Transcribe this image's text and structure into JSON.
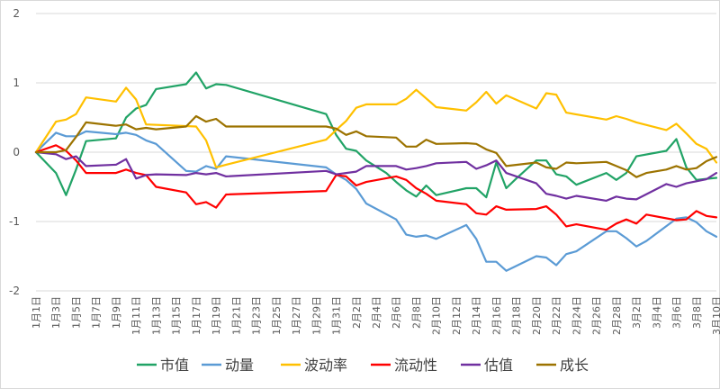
{
  "chart_data": {
    "type": "line",
    "title": "",
    "xlabel": "",
    "ylabel": "",
    "ylim": [
      -2,
      2
    ],
    "yticks": [
      2,
      1,
      0,
      -1,
      -2
    ],
    "grid": "horizontal",
    "legend": "bottom",
    "x_tick_labels": [
      "1月1日",
      "1月3日",
      "1月5日",
      "1月7日",
      "1月9日",
      "1月11日",
      "1月13日",
      "1月15日",
      "1月17日",
      "1月19日",
      "1月21日",
      "1月23日",
      "1月25日",
      "1月27日",
      "1月29日",
      "1月31日",
      "2月2日",
      "2月4日",
      "2月6日",
      "2月8日",
      "2月10日",
      "2月12日",
      "2月14日",
      "2月16日",
      "2月18日",
      "2月20日",
      "2月22日",
      "2月24日",
      "2月26日",
      "2月28日",
      "3月2日",
      "3月4日",
      "3月6日",
      "3月8日",
      "3月10日"
    ],
    "series": [
      {
        "name": "市值",
        "color": "#21a366",
        "points": [
          [
            "1月1日",
            0
          ],
          [
            "1月3日",
            -0.3
          ],
          [
            "1月4日",
            -0.62
          ],
          [
            "1月5日",
            -0.25
          ],
          [
            "1月6日",
            0.16
          ],
          [
            "1月9日",
            0.2
          ],
          [
            "1月10日",
            0.5
          ],
          [
            "1月11日",
            0.63
          ],
          [
            "1月12日",
            0.68
          ],
          [
            "1月13日",
            0.91
          ],
          [
            "1月16日",
            0.98
          ],
          [
            "1月17日",
            1.15
          ],
          [
            "1月18日",
            0.92
          ],
          [
            "1月19日",
            0.98
          ],
          [
            "1月20日",
            0.97
          ],
          [
            "1月30日",
            0.55
          ],
          [
            "1月31日",
            0.25
          ],
          [
            "2月1日",
            0.05
          ],
          [
            "2月2日",
            0.02
          ],
          [
            "2月3日",
            -0.12
          ],
          [
            "2月5日",
            -0.3
          ],
          [
            "2月6日",
            -0.43
          ],
          [
            "2月7日",
            -0.55
          ],
          [
            "2月8日",
            -0.64
          ],
          [
            "2月9日",
            -0.48
          ],
          [
            "2月10日",
            -0.62
          ],
          [
            "2月13日",
            -0.52
          ],
          [
            "2月14日",
            -0.52
          ],
          [
            "2月15日",
            -0.65
          ],
          [
            "2月16日",
            -0.15
          ],
          [
            "2月17日",
            -0.52
          ],
          [
            "2月18日",
            -0.38
          ],
          [
            "2月20日",
            -0.12
          ],
          [
            "2月21日",
            -0.12
          ],
          [
            "2月22日",
            -0.32
          ],
          [
            "2月23日",
            -0.35
          ],
          [
            "2月24日",
            -0.47
          ],
          [
            "2月27日",
            -0.3
          ],
          [
            "2月28日",
            -0.4
          ],
          [
            "3月1日",
            -0.3
          ],
          [
            "3月2日",
            -0.06
          ],
          [
            "3月5日",
            0.02
          ],
          [
            "3月6日",
            0.19
          ],
          [
            "3月7日",
            -0.22
          ],
          [
            "3月8日",
            -0.4
          ],
          [
            "3月10日",
            -0.37
          ]
        ]
      },
      {
        "name": "动量",
        "color": "#5b9bd5",
        "points": [
          [
            "1月1日",
            0
          ],
          [
            "1月3日",
            0.28
          ],
          [
            "1月4日",
            0.23
          ],
          [
            "1月5日",
            0.23
          ],
          [
            "1月6日",
            0.3
          ],
          [
            "1月9日",
            0.26
          ],
          [
            "1月10日",
            0.28
          ],
          [
            "1月11日",
            0.25
          ],
          [
            "1月12日",
            0.17
          ],
          [
            "1月13日",
            0.12
          ],
          [
            "1月16日",
            -0.27
          ],
          [
            "1月17日",
            -0.28
          ],
          [
            "1月18日",
            -0.2
          ],
          [
            "1月19日",
            -0.24
          ],
          [
            "1月20日",
            -0.06
          ],
          [
            "1月30日",
            -0.22
          ],
          [
            "1月31日",
            -0.32
          ],
          [
            "2月1日",
            -0.4
          ],
          [
            "2月2日",
            -0.53
          ],
          [
            "2月3日",
            -0.74
          ],
          [
            "2月6日",
            -0.97
          ],
          [
            "2月7日",
            -1.19
          ],
          [
            "2月8日",
            -1.22
          ],
          [
            "2月9日",
            -1.2
          ],
          [
            "2月10日",
            -1.25
          ],
          [
            "2月13日",
            -1.05
          ],
          [
            "2月14日",
            -1.25
          ],
          [
            "2月15日",
            -1.58
          ],
          [
            "2月16日",
            -1.58
          ],
          [
            "2月17日",
            -1.71
          ],
          [
            "2月20日",
            -1.5
          ],
          [
            "2月21日",
            -1.52
          ],
          [
            "2月22日",
            -1.63
          ],
          [
            "2月23日",
            -1.47
          ],
          [
            "2月24日",
            -1.43
          ],
          [
            "2月27日",
            -1.14
          ],
          [
            "2月28日",
            -1.14
          ],
          [
            "3月1日",
            -1.24
          ],
          [
            "3月2日",
            -1.36
          ],
          [
            "3月3日",
            -1.28
          ],
          [
            "3月6日",
            -0.96
          ],
          [
            "3月7日",
            -0.94
          ],
          [
            "3月8日",
            -1.01
          ],
          [
            "3月9日",
            -1.14
          ],
          [
            "3月10日",
            -1.22
          ]
        ]
      },
      {
        "name": "波动率",
        "color": "#ffc000",
        "points": [
          [
            "1月1日",
            0
          ],
          [
            "1月3日",
            0.44
          ],
          [
            "1月4日",
            0.47
          ],
          [
            "1月5日",
            0.55
          ],
          [
            "1月6日",
            0.79
          ],
          [
            "1月9日",
            0.73
          ],
          [
            "1月10日",
            0.93
          ],
          [
            "1月11日",
            0.76
          ],
          [
            "1月12日",
            0.4
          ],
          [
            "1月17日",
            0.37
          ],
          [
            "1月18日",
            0.17
          ],
          [
            "1月19日",
            -0.22
          ],
          [
            "1月20日",
            -0.18
          ],
          [
            "1月30日",
            0.18
          ],
          [
            "1月31日",
            0.32
          ],
          [
            "2月1日",
            0.45
          ],
          [
            "2月2日",
            0.64
          ],
          [
            "2月3日",
            0.69
          ],
          [
            "2月6日",
            0.69
          ],
          [
            "2月7日",
            0.77
          ],
          [
            "2月8日",
            0.9
          ],
          [
            "2月10日",
            0.65
          ],
          [
            "2月13日",
            0.6
          ],
          [
            "2月14日",
            0.72
          ],
          [
            "2月15日",
            0.87
          ],
          [
            "2月16日",
            0.7
          ],
          [
            "2月17日",
            0.82
          ],
          [
            "2月20日",
            0.63
          ],
          [
            "2月21日",
            0.85
          ],
          [
            "2月22日",
            0.83
          ],
          [
            "2月23日",
            0.57
          ],
          [
            "2月27日",
            0.47
          ],
          [
            "2月28日",
            0.52
          ],
          [
            "3月1日",
            0.48
          ],
          [
            "3月2日",
            0.43
          ],
          [
            "3月5日",
            0.32
          ],
          [
            "3月6日",
            0.41
          ],
          [
            "3月7日",
            0.27
          ],
          [
            "3月8日",
            0.12
          ],
          [
            "3月9日",
            0.05
          ],
          [
            "3月10日",
            -0.15
          ]
        ]
      },
      {
        "name": "流动性",
        "color": "#ff0000",
        "points": [
          [
            "1月1日",
            0
          ],
          [
            "1月3日",
            0.1
          ],
          [
            "1月4日",
            0.02
          ],
          [
            "1月5日",
            -0.12
          ],
          [
            "1月6日",
            -0.3
          ],
          [
            "1月9日",
            -0.3
          ],
          [
            "1月10日",
            -0.25
          ],
          [
            "1月11日",
            -0.3
          ],
          [
            "1月12日",
            -0.33
          ],
          [
            "1月13日",
            -0.5
          ],
          [
            "1月16日",
            -0.58
          ],
          [
            "1月17日",
            -0.75
          ],
          [
            "1月18日",
            -0.72
          ],
          [
            "1月19日",
            -0.8
          ],
          [
            "1月20日",
            -0.61
          ],
          [
            "1月30日",
            -0.56
          ],
          [
            "1月31日",
            -0.33
          ],
          [
            "2月1日",
            -0.35
          ],
          [
            "2月2日",
            -0.48
          ],
          [
            "2月3日",
            -0.43
          ],
          [
            "2月6日",
            -0.35
          ],
          [
            "2月7日",
            -0.4
          ],
          [
            "2月8日",
            -0.52
          ],
          [
            "2月9日",
            -0.6
          ],
          [
            "2月10日",
            -0.7
          ],
          [
            "2月13日",
            -0.75
          ],
          [
            "2月14日",
            -0.88
          ],
          [
            "2月15日",
            -0.9
          ],
          [
            "2月16日",
            -0.78
          ],
          [
            "2月17日",
            -0.83
          ],
          [
            "2月20日",
            -0.82
          ],
          [
            "2月21日",
            -0.78
          ],
          [
            "2月22日",
            -0.9
          ],
          [
            "2月23日",
            -1.07
          ],
          [
            "2月24日",
            -1.04
          ],
          [
            "2月27日",
            -1.12
          ],
          [
            "2月28日",
            -1.03
          ],
          [
            "3月1日",
            -0.97
          ],
          [
            "3月2日",
            -1.03
          ],
          [
            "3月3日",
            -0.9
          ],
          [
            "3月6日",
            -0.98
          ],
          [
            "3月7日",
            -0.97
          ],
          [
            "3月8日",
            -0.85
          ],
          [
            "3月9日",
            -0.92
          ],
          [
            "3月10日",
            -0.94
          ]
        ]
      },
      {
        "name": "估值",
        "color": "#7030a0",
        "points": [
          [
            "1月1日",
            0
          ],
          [
            "1月3日",
            -0.03
          ],
          [
            "1月4日",
            -0.1
          ],
          [
            "1月5日",
            -0.06
          ],
          [
            "1月6日",
            -0.2
          ],
          [
            "1月9日",
            -0.18
          ],
          [
            "1月10日",
            -0.1
          ],
          [
            "1月11日",
            -0.38
          ],
          [
            "1月12日",
            -0.33
          ],
          [
            "1月13日",
            -0.32
          ],
          [
            "1月16日",
            -0.33
          ],
          [
            "1月17日",
            -0.3
          ],
          [
            "1月18日",
            -0.32
          ],
          [
            "1月19日",
            -0.3
          ],
          [
            "1月20日",
            -0.35
          ],
          [
            "1月30日",
            -0.27
          ],
          [
            "1月31日",
            -0.32
          ],
          [
            "2月1日",
            -0.3
          ],
          [
            "2月2日",
            -0.28
          ],
          [
            "2月3日",
            -0.2
          ],
          [
            "2月6日",
            -0.2
          ],
          [
            "2月7日",
            -0.25
          ],
          [
            "2月8日",
            -0.23
          ],
          [
            "2月9日",
            -0.2
          ],
          [
            "2月10日",
            -0.16
          ],
          [
            "2月13日",
            -0.14
          ],
          [
            "2月14日",
            -0.24
          ],
          [
            "2月15日",
            -0.19
          ],
          [
            "2月16日",
            -0.12
          ],
          [
            "2月17日",
            -0.3
          ],
          [
            "2月20日",
            -0.45
          ],
          [
            "2月21日",
            -0.6
          ],
          [
            "2月22日",
            -0.63
          ],
          [
            "2月23日",
            -0.67
          ],
          [
            "2月24日",
            -0.63
          ],
          [
            "2月27日",
            -0.7
          ],
          [
            "2月28日",
            -0.64
          ],
          [
            "3月1日",
            -0.67
          ],
          [
            "3月2日",
            -0.68
          ],
          [
            "3月5日",
            -0.46
          ],
          [
            "3月6日",
            -0.5
          ],
          [
            "3月7日",
            -0.45
          ],
          [
            "3月8日",
            -0.42
          ],
          [
            "3月9日",
            -0.39
          ],
          [
            "3月10日",
            -0.3
          ]
        ]
      },
      {
        "name": "成长",
        "color": "#9c7300",
        "points": [
          [
            "1月1日",
            0
          ],
          [
            "1月3日",
            0
          ],
          [
            "1月4日",
            0.03
          ],
          [
            "1月5日",
            0.22
          ],
          [
            "1月6日",
            0.43
          ],
          [
            "1月9日",
            0.38
          ],
          [
            "1月10日",
            0.4
          ],
          [
            "1月11日",
            0.33
          ],
          [
            "1月12日",
            0.35
          ],
          [
            "1月13日",
            0.33
          ],
          [
            "1月16日",
            0.37
          ],
          [
            "1月17日",
            0.52
          ],
          [
            "1月18日",
            0.44
          ],
          [
            "1月19日",
            0.48
          ],
          [
            "1月20日",
            0.37
          ],
          [
            "1月30日",
            0.37
          ],
          [
            "1月31日",
            0.34
          ],
          [
            "2月1日",
            0.25
          ],
          [
            "2月2日",
            0.3
          ],
          [
            "2月3日",
            0.23
          ],
          [
            "2月6日",
            0.21
          ],
          [
            "2月7日",
            0.08
          ],
          [
            "2月8日",
            0.08
          ],
          [
            "2月9日",
            0.18
          ],
          [
            "2月10日",
            0.12
          ],
          [
            "2月13日",
            0.13
          ],
          [
            "2月14日",
            0.12
          ],
          [
            "2月15日",
            0.04
          ],
          [
            "2月16日",
            -0.01
          ],
          [
            "2月17日",
            -0.2
          ],
          [
            "2月20日",
            -0.15
          ],
          [
            "2月21日",
            -0.22
          ],
          [
            "2月22日",
            -0.24
          ],
          [
            "2月23日",
            -0.15
          ],
          [
            "2月24日",
            -0.16
          ],
          [
            "2月27日",
            -0.14
          ],
          [
            "2月28日",
            -0.2
          ],
          [
            "3月1日",
            -0.26
          ],
          [
            "3月2日",
            -0.36
          ],
          [
            "3月3日",
            -0.3
          ],
          [
            "3月5日",
            -0.25
          ],
          [
            "3月6日",
            -0.2
          ],
          [
            "3月7日",
            -0.25
          ],
          [
            "3月8日",
            -0.23
          ],
          [
            "3月9日",
            -0.13
          ],
          [
            "3月10日",
            -0.07
          ]
        ]
      }
    ]
  }
}
